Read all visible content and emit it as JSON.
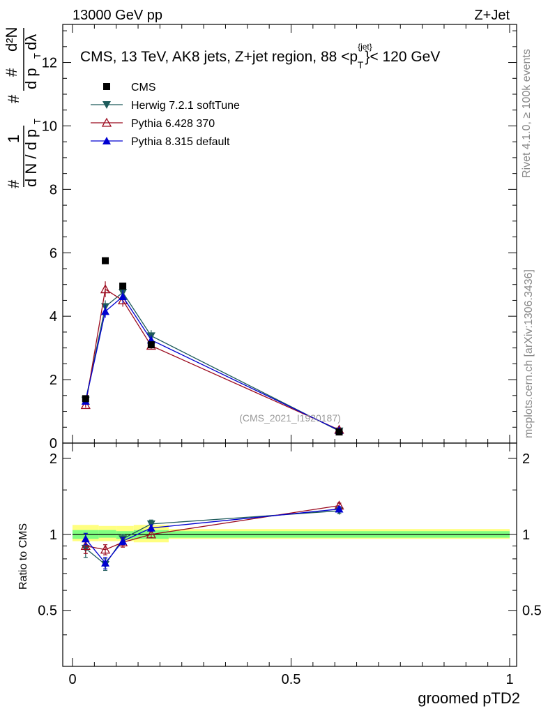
{
  "header": {
    "left": "13000 GeV pp",
    "right": "Z+Jet"
  },
  "side_labels": {
    "rivet": "Rivet 4.1.0, ≥ 100k events",
    "mcplots": "mcplots.cern.ch [arXiv:1306.3436]"
  },
  "colors": {
    "cms": "#000000",
    "herwig": "#1e5b5b",
    "pythia6": "#9b0a1e",
    "pythia8": "#0000d0",
    "band_inner": "#80ff80",
    "band_outer": "#ffff80"
  },
  "chart_data": [
    {
      "type": "line",
      "panel": "main",
      "title": "CMS, 13 TeV, AK8 jets, Z+jet region, 88 <p_T^{jet}< 120 GeV",
      "title_parts": {
        "main": "CMS, 13 TeV, AK8 jets, Z+jet region, 88 <p",
        "sup": "{jet}",
        "sub": "T",
        "tail": "}< 120 GeV"
      },
      "ylabel": "1/(dN/dp_T) d²N/(dp_T dλ)",
      "ylabel_parts": {
        "hash": "#",
        "one": "1",
        "dN": "d N / d p",
        "T": "T",
        "d2N": "d²N",
        "dpt": "d p",
        "dl": "dλ"
      },
      "watermark": "(CMS_2021_I1920187)",
      "xlim": [
        0,
        1
      ],
      "ylim": [
        0,
        13.2
      ],
      "yticks": [
        0,
        2,
        4,
        6,
        8,
        10,
        12
      ],
      "ytick_labels": [
        "0",
        "2",
        "4",
        "6",
        "8",
        "10",
        "12"
      ],
      "x": [
        0.03,
        0.075,
        0.115,
        0.18,
        0.61
      ],
      "series": [
        {
          "name": "CMS",
          "marker": "square",
          "values": [
            1.4,
            5.75,
            4.95,
            3.1,
            0.35
          ],
          "errors": [
            0.05,
            0.05,
            0.05,
            0.05,
            0.02
          ]
        },
        {
          "name": "Herwig 7.2.1 softTune",
          "marker": "triangle-down",
          "values": [
            1.35,
            4.3,
            4.75,
            3.38,
            0.38
          ],
          "errors": [
            0.08,
            0.2,
            0.2,
            0.18,
            0.03
          ]
        },
        {
          "name": "Pythia 6.428 370",
          "marker": "triangle-up-open",
          "values": [
            1.2,
            4.85,
            4.5,
            3.07,
            0.42
          ],
          "errors": [
            0.08,
            0.25,
            0.2,
            0.12,
            0.03
          ]
        },
        {
          "name": "Pythia 8.315 default",
          "marker": "triangle-up",
          "values": [
            1.32,
            4.15,
            4.62,
            3.25,
            0.4
          ],
          "errors": [
            0.08,
            0.2,
            0.2,
            0.15,
            0.03
          ]
        }
      ]
    },
    {
      "type": "line",
      "panel": "ratio",
      "ylabel": "Ratio to CMS",
      "xlabel": "groomed pTD2",
      "xlim": [
        0,
        1
      ],
      "ylim": [
        0.3,
        2.3
      ],
      "xticks": [
        0,
        0.5,
        1
      ],
      "xtick_labels": [
        "0",
        "0.5",
        "1"
      ],
      "yticks": [
        0.5,
        1,
        2
      ],
      "ytick_labels": [
        "0.5",
        "1",
        "2"
      ],
      "x": [
        0.03,
        0.075,
        0.115,
        0.18,
        0.61
      ],
      "band": {
        "edges": [
          0,
          0.06,
          0.1,
          0.14,
          0.22,
          1.0
        ],
        "inner_lo": [
          0.96,
          0.97,
          0.96,
          0.96,
          0.97
        ],
        "inner_hi": [
          1.04,
          1.04,
          1.03,
          1.04,
          1.03
        ],
        "outer_lo": [
          0.94,
          0.94,
          0.94,
          0.93,
          0.96
        ],
        "outer_hi": [
          1.09,
          1.08,
          1.08,
          1.09,
          1.05
        ]
      },
      "series": [
        {
          "name": "Herwig 7.2.1 softTune",
          "marker": "triangle-down",
          "values": [
            0.88,
            0.76,
            0.96,
            1.1,
            1.24
          ],
          "errors": [
            0.07,
            0.04,
            0.04,
            0.04,
            0.03
          ]
        },
        {
          "name": "Pythia 6.428 370",
          "marker": "triangle-up-open",
          "values": [
            0.9,
            0.87,
            0.93,
            1.0,
            1.3
          ],
          "errors": [
            0.06,
            0.04,
            0.04,
            0.03,
            0.03
          ]
        },
        {
          "name": "Pythia 8.315 default",
          "marker": "triangle-up",
          "values": [
            0.96,
            0.77,
            0.94,
            1.06,
            1.26
          ],
          "errors": [
            0.05,
            0.04,
            0.03,
            0.03,
            0.03
          ]
        }
      ]
    }
  ]
}
